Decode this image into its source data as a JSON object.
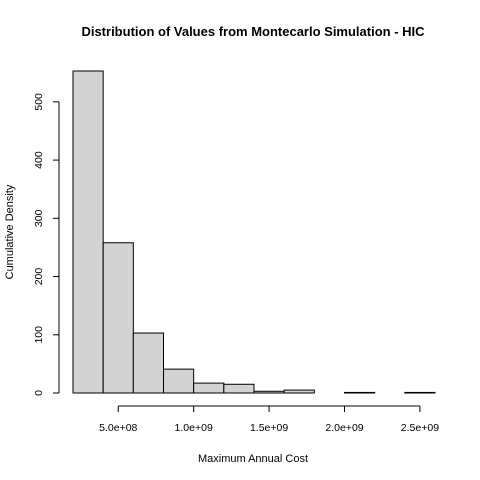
{
  "chart_data": {
    "type": "bar",
    "title": "Distribution of Values from Montecarlo Simulation - HIC",
    "xlabel": "Maximum Annual Cost",
    "ylabel": "Cumulative Density",
    "bin_edges": [
      200000000,
      400000000,
      600000000,
      800000000,
      1000000000,
      1200000000,
      1400000000,
      1600000000,
      1800000000,
      2000000000,
      2200000000,
      2400000000,
      2600000000
    ],
    "values": [
      553,
      258,
      103,
      41,
      17,
      15,
      3,
      5,
      0,
      1,
      0,
      1
    ],
    "xlim": [
      200000000,
      2600000000
    ],
    "ylim": [
      0,
      553
    ],
    "x_ticks": [
      {
        "value": 500000000,
        "label": "5.0e+08"
      },
      {
        "value": 1000000000,
        "label": "1.0e+09"
      },
      {
        "value": 1500000000,
        "label": "1.5e+09"
      },
      {
        "value": 2000000000,
        "label": "2.0e+09"
      },
      {
        "value": 2500000000,
        "label": "2.5e+09"
      }
    ],
    "y_ticks": [
      {
        "value": 0,
        "label": "0"
      },
      {
        "value": 100,
        "label": "100"
      },
      {
        "value": 200,
        "label": "200"
      },
      {
        "value": 300,
        "label": "300"
      },
      {
        "value": 400,
        "label": "400"
      },
      {
        "value": 500,
        "label": "500"
      }
    ],
    "grid": false,
    "bar_fill": "#d3d3d3",
    "bar_stroke": "#000000"
  }
}
